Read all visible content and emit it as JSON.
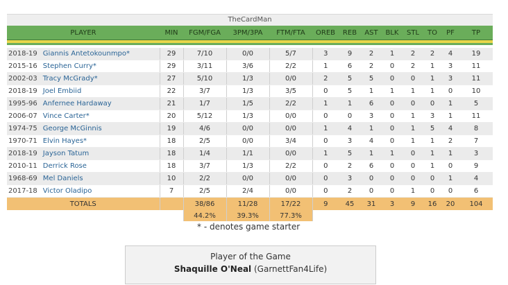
{
  "box_title": "TheCardMan",
  "headers": [
    "PLAYER",
    "MIN",
    "FGM/FGA",
    "3PM/3PA",
    "FTM/FTA",
    "OREB",
    "REB",
    "AST",
    "BLK",
    "STL",
    "TO",
    "PF",
    "TP"
  ],
  "players": [
    {
      "season": "2018-19",
      "name": "Giannis Antetokounmpo*",
      "stats": [
        "29",
        "7/10",
        "0/0",
        "5/7",
        "3",
        "9",
        "2",
        "1",
        "2",
        "2",
        "4",
        "19"
      ]
    },
    {
      "season": "2015-16",
      "name": "Stephen Curry*",
      "stats": [
        "29",
        "3/11",
        "3/6",
        "2/2",
        "1",
        "6",
        "2",
        "0",
        "2",
        "1",
        "3",
        "11"
      ]
    },
    {
      "season": "2002-03",
      "name": "Tracy McGrady*",
      "stats": [
        "27",
        "5/10",
        "1/3",
        "0/0",
        "2",
        "5",
        "5",
        "0",
        "0",
        "1",
        "3",
        "11"
      ]
    },
    {
      "season": "2018-19",
      "name": "Joel Embiid",
      "stats": [
        "22",
        "3/7",
        "1/3",
        "3/5",
        "0",
        "5",
        "1",
        "1",
        "1",
        "1",
        "0",
        "10"
      ]
    },
    {
      "season": "1995-96",
      "name": "Anfernee Hardaway",
      "stats": [
        "21",
        "1/7",
        "1/5",
        "2/2",
        "1",
        "1",
        "6",
        "0",
        "0",
        "0",
        "1",
        "5"
      ]
    },
    {
      "season": "2006-07",
      "name": "Vince Carter*",
      "stats": [
        "20",
        "5/12",
        "1/3",
        "0/0",
        "0",
        "0",
        "3",
        "0",
        "1",
        "3",
        "1",
        "11"
      ]
    },
    {
      "season": "1974-75",
      "name": "George McGinnis",
      "stats": [
        "19",
        "4/6",
        "0/0",
        "0/0",
        "1",
        "4",
        "1",
        "0",
        "1",
        "5",
        "4",
        "8"
      ]
    },
    {
      "season": "1970-71",
      "name": "Elvin Hayes*",
      "stats": [
        "18",
        "2/5",
        "0/0",
        "3/4",
        "0",
        "3",
        "4",
        "0",
        "1",
        "1",
        "2",
        "7"
      ]
    },
    {
      "season": "2018-19",
      "name": "Jayson Tatum",
      "stats": [
        "18",
        "1/4",
        "1/1",
        "0/0",
        "1",
        "5",
        "1",
        "1",
        "0",
        "1",
        "1",
        "3"
      ]
    },
    {
      "season": "2010-11",
      "name": "Derrick Rose",
      "stats": [
        "18",
        "3/7",
        "1/3",
        "2/2",
        "0",
        "2",
        "6",
        "0",
        "0",
        "1",
        "0",
        "9"
      ]
    },
    {
      "season": "1968-69",
      "name": "Mel Daniels",
      "stats": [
        "10",
        "2/2",
        "0/0",
        "0/0",
        "0",
        "3",
        "0",
        "0",
        "0",
        "0",
        "1",
        "4"
      ]
    },
    {
      "season": "2017-18",
      "name": "Victor Oladipo",
      "stats": [
        "7",
        "2/5",
        "2/4",
        "0/0",
        "0",
        "2",
        "0",
        "0",
        "1",
        "0",
        "0",
        "6"
      ]
    }
  ],
  "totals": {
    "label": "TOTALS",
    "fg": "38/86",
    "tp3": "11/28",
    "ft": "17/22",
    "oreb": "9",
    "reb": "45",
    "ast": "31",
    "blk": "3",
    "stl": "9",
    "to": "16",
    "pf": "20",
    "tp": "104",
    "fg_pct": "44.2%",
    "tp3_pct": "39.3%",
    "ft_pct": "77.3%"
  },
  "starter_note": "* - denotes game starter",
  "potg": {
    "title": "Player of the Game",
    "name": "Shaquille O'Neal",
    "user": "(GarnettFan4Life)"
  },
  "colors": {
    "header_green": "#6aad5a",
    "stripe_yellow": "#e8d64a",
    "totals_orange": "#f2c074",
    "link_blue": "#2a6496"
  }
}
